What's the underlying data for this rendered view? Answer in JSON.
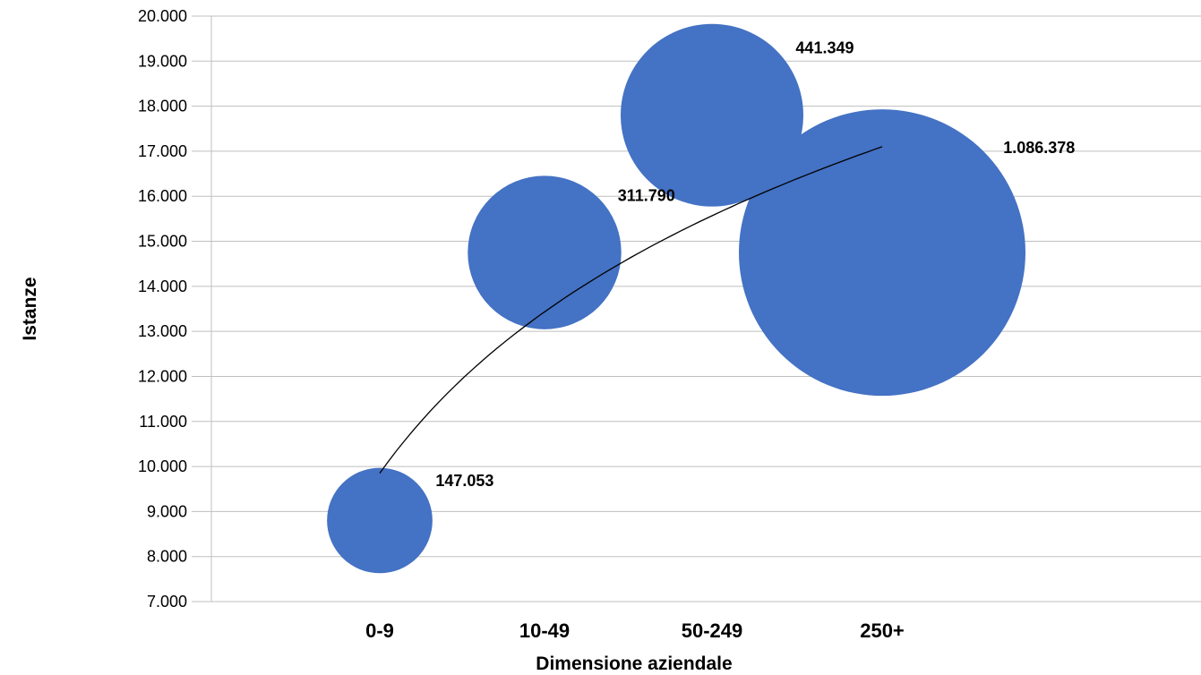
{
  "chart_data": {
    "type": "bubble",
    "title": "",
    "xlabel": "Dimensione aziendale",
    "ylabel": "Istanze",
    "ylim": [
      7000,
      20000
    ],
    "y_tick_step": 1000,
    "y_tick_labels": [
      "7.000",
      "8.000",
      "9.000",
      "10.000",
      "11.000",
      "12.000",
      "13.000",
      "14.000",
      "15.000",
      "16.000",
      "17.000",
      "18.000",
      "19.000",
      "20.000"
    ],
    "categories": [
      "0-9",
      "10-49",
      "50-249",
      "250+"
    ],
    "points": [
      {
        "category": "0-9",
        "y": 8800,
        "size": 147053,
        "label": "147.053"
      },
      {
        "category": "10-49",
        "y": 14750,
        "size": 311790,
        "label": "311.790"
      },
      {
        "category": "50-249",
        "y": 17800,
        "size": 441349,
        "label": "441.349"
      },
      {
        "category": "250+",
        "y": 14750,
        "size": 1086378,
        "label": "1.086.378"
      }
    ],
    "trendline": {
      "type": "logarithmic",
      "from": {
        "category": "0-9",
        "y": 9850
      },
      "to": {
        "category": "250+",
        "y": 17100
      }
    },
    "bubble_color": "#4472C4",
    "grid": true,
    "legend": "none"
  }
}
